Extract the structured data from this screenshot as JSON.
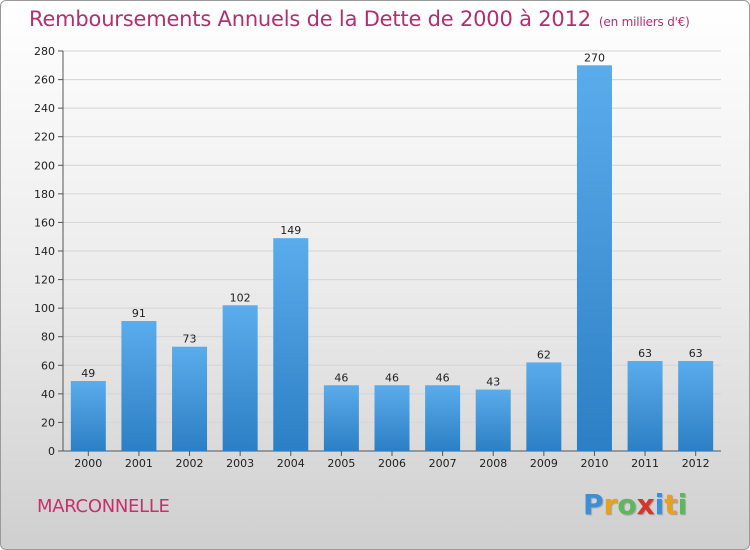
{
  "title": "Remboursements Annuels de la Dette de 2000 à 2012",
  "subtitle": "(en milliers d'€)",
  "commune": "MARCONNELLE",
  "logo": {
    "letters": [
      "P",
      "r",
      "o",
      "x",
      "i",
      "t",
      "i"
    ],
    "colors": [
      "#3a8fd8",
      "#e8a020",
      "#5cb85c",
      "#d9342b",
      "#3a8fd8",
      "#e8a020",
      "#5cb85c"
    ]
  },
  "colors": {
    "bar_top": "#5aaceb",
    "bar_bottom": "#2d7fc5",
    "title": "#b03070"
  },
  "chart_data": {
    "type": "bar",
    "title": "Remboursements Annuels de la Dette de 2000 à 2012",
    "xlabel": "",
    "ylabel": "",
    "categories": [
      "2000",
      "2001",
      "2002",
      "2003",
      "2004",
      "2005",
      "2006",
      "2007",
      "2008",
      "2009",
      "2010",
      "2011",
      "2012"
    ],
    "values": [
      49,
      91,
      73,
      102,
      149,
      46,
      46,
      46,
      43,
      62,
      270,
      63,
      63
    ],
    "ylim": [
      0,
      280
    ],
    "yticks": [
      0,
      20,
      40,
      60,
      80,
      100,
      120,
      140,
      160,
      180,
      200,
      220,
      240,
      260,
      280
    ],
    "grid": true
  }
}
